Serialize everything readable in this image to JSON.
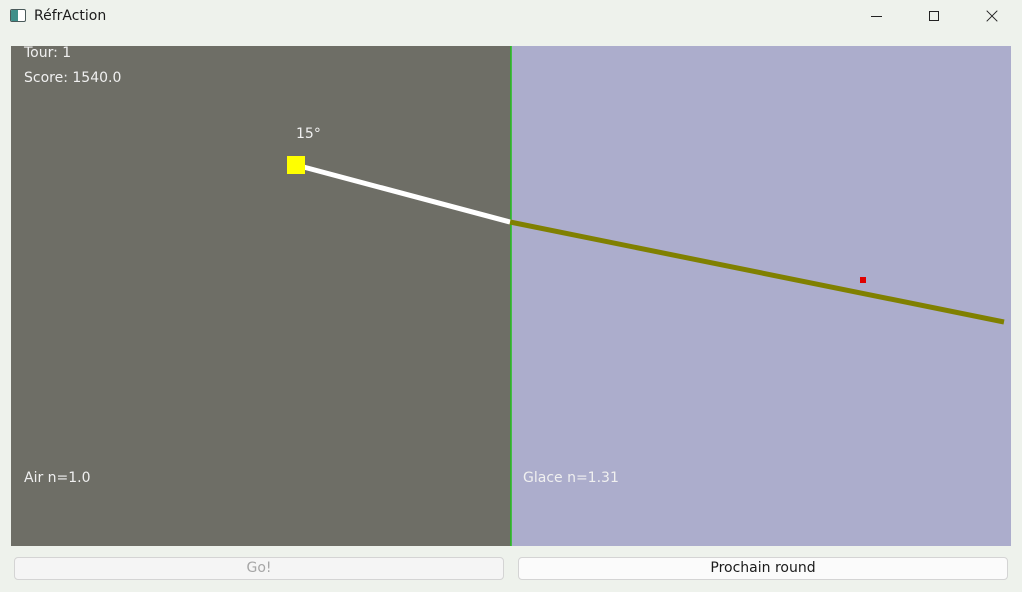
{
  "window": {
    "title": "RéfrAction",
    "icon": "window-app-icon"
  },
  "hud": {
    "round": "Tour: 1",
    "score": "Score: 1540.0",
    "angle": "15°"
  },
  "media": {
    "left": {
      "label": "Air n=1.0",
      "color": "#6e6e66",
      "n": 1.0
    },
    "right": {
      "label": "Glace n=1.31",
      "color": "#acadcc",
      "n": 1.31
    },
    "interface_color": "#22c01a"
  },
  "beam": {
    "incident_color": "#ffffff",
    "refracted_color": "#808000",
    "emitter_color": "#ffff00",
    "target_color": "#e00000"
  },
  "buttons": {
    "go": "Go!",
    "next_round": "Prochain round"
  }
}
